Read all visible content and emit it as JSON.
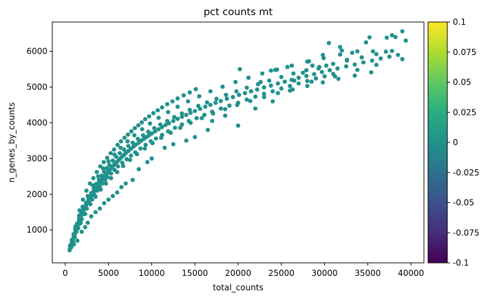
{
  "chart_data": {
    "type": "scatter",
    "title": "pct counts mt",
    "xlabel": "total_counts",
    "ylabel": "n_genes_by_counts",
    "xlim": [
      -1500,
      41500
    ],
    "ylim": [
      80,
      6820
    ],
    "xticks": [
      0,
      5000,
      10000,
      15000,
      20000,
      25000,
      30000,
      35000,
      40000
    ],
    "yticks": [
      1000,
      2000,
      3000,
      4000,
      5000,
      6000
    ],
    "grid": false,
    "legend": "none",
    "point_color": "#21918c",
    "colorbar": {
      "label": "",
      "colormap": "viridis",
      "range": [
        -0.1,
        0.1
      ],
      "ticks": [
        "0.1",
        "0.075",
        "0.05",
        "0.025",
        "0",
        "-0.025",
        "-0.05",
        "-0.075",
        "-0.1"
      ],
      "tick_values": [
        0.1,
        0.075,
        0.05,
        0.025,
        0,
        -0.025,
        -0.05,
        -0.075,
        -0.1
      ]
    },
    "points": [
      [
        500,
        430
      ],
      [
        550,
        470
      ],
      [
        600,
        520
      ],
      [
        650,
        560
      ],
      [
        700,
        600
      ],
      [
        760,
        640
      ],
      [
        820,
        690
      ],
      [
        880,
        730
      ],
      [
        950,
        780
      ],
      [
        1000,
        820
      ],
      [
        1050,
        860
      ],
      [
        1100,
        900
      ],
      [
        1150,
        930
      ],
      [
        1200,
        970
      ],
      [
        1250,
        1010
      ],
      [
        1300,
        1040
      ],
      [
        1350,
        1080
      ],
      [
        1400,
        1110
      ],
      [
        1450,
        1150
      ],
      [
        1500,
        1180
      ],
      [
        1550,
        1220
      ],
      [
        1600,
        1250
      ],
      [
        1650,
        1290
      ],
      [
        1700,
        1320
      ],
      [
        1750,
        1350
      ],
      [
        1800,
        1380
      ],
      [
        1850,
        1410
      ],
      [
        1900,
        1440
      ],
      [
        1950,
        1470
      ],
      [
        2000,
        1500
      ],
      [
        2100,
        1540
      ],
      [
        2200,
        1600
      ],
      [
        2300,
        1650
      ],
      [
        2400,
        1700
      ],
      [
        2500,
        1750
      ],
      [
        2600,
        1790
      ],
      [
        2700,
        1840
      ],
      [
        2800,
        1880
      ],
      [
        2900,
        1920
      ],
      [
        3000,
        1960
      ],
      [
        3100,
        2000
      ],
      [
        3200,
        2040
      ],
      [
        3300,
        2080
      ],
      [
        3400,
        2120
      ],
      [
        3500,
        2160
      ],
      [
        3600,
        2190
      ],
      [
        3700,
        2230
      ],
      [
        3800,
        2260
      ],
      [
        3900,
        2300
      ],
      [
        4000,
        2330
      ],
      [
        4100,
        2370
      ],
      [
        4200,
        2400
      ],
      [
        4300,
        2430
      ],
      [
        4400,
        2460
      ],
      [
        4500,
        2490
      ],
      [
        4600,
        2520
      ],
      [
        4700,
        2550
      ],
      [
        4800,
        2580
      ],
      [
        4900,
        2610
      ],
      [
        5000,
        2640
      ],
      [
        5200,
        2700
      ],
      [
        5400,
        2760
      ],
      [
        5600,
        2810
      ],
      [
        5800,
        2860
      ],
      [
        6000,
        2910
      ],
      [
        6200,
        2960
      ],
      [
        6400,
        3010
      ],
      [
        6600,
        3060
      ],
      [
        6800,
        3100
      ],
      [
        7000,
        3150
      ],
      [
        7300,
        3210
      ],
      [
        7600,
        3270
      ],
      [
        7900,
        3330
      ],
      [
        8200,
        3390
      ],
      [
        8500,
        3440
      ],
      [
        8800,
        3500
      ],
      [
        9100,
        3550
      ],
      [
        9400,
        3600
      ],
      [
        9700,
        3650
      ],
      [
        10000,
        3700
      ],
      [
        10400,
        3760
      ],
      [
        10800,
        3820
      ],
      [
        11200,
        3880
      ],
      [
        11600,
        3940
      ],
      [
        12000,
        3990
      ],
      [
        12500,
        4050
      ],
      [
        13000,
        4110
      ],
      [
        13500,
        4170
      ],
      [
        14000,
        4220
      ],
      [
        14500,
        4280
      ],
      [
        15000,
        4330
      ],
      [
        15600,
        4390
      ],
      [
        16200,
        4450
      ],
      [
        16800,
        4500
      ],
      [
        17400,
        4560
      ],
      [
        18000,
        4610
      ],
      [
        18700,
        4670
      ],
      [
        19400,
        4720
      ],
      [
        20100,
        4780
      ],
      [
        20800,
        4830
      ],
      [
        21500,
        4880
      ],
      [
        22200,
        4930
      ],
      [
        23000,
        4990
      ],
      [
        23800,
        5040
      ],
      [
        24600,
        5100
      ],
      [
        25400,
        5150
      ],
      [
        26200,
        5200
      ],
      [
        27000,
        5260
      ],
      [
        27900,
        5310
      ],
      [
        28800,
        5360
      ],
      [
        29700,
        5420
      ],
      [
        30600,
        5470
      ],
      [
        31500,
        5520
      ],
      [
        32500,
        5580
      ],
      [
        33500,
        5630
      ],
      [
        34500,
        5690
      ],
      [
        35500,
        5740
      ],
      [
        36500,
        5800
      ],
      [
        37500,
        5850
      ],
      [
        38500,
        5900
      ],
      [
        700,
        520
      ],
      [
        900,
        650
      ],
      [
        1100,
        800
      ],
      [
        1300,
        950
      ],
      [
        1500,
        1050
      ],
      [
        1700,
        1180
      ],
      [
        1900,
        1300
      ],
      [
        2200,
        1450
      ],
      [
        2500,
        1600
      ],
      [
        2800,
        1750
      ],
      [
        3100,
        1850
      ],
      [
        3400,
        1980
      ],
      [
        3700,
        2100
      ],
      [
        4000,
        2200
      ],
      [
        4300,
        2300
      ],
      [
        4600,
        2400
      ],
      [
        4900,
        2480
      ],
      [
        5300,
        2580
      ],
      [
        5700,
        2680
      ],
      [
        6100,
        2780
      ],
      [
        6600,
        2880
      ],
      [
        7100,
        2980
      ],
      [
        7600,
        3080
      ],
      [
        8100,
        3170
      ],
      [
        8700,
        3280
      ],
      [
        9300,
        3380
      ],
      [
        9900,
        3480
      ],
      [
        10500,
        3560
      ],
      [
        11200,
        3660
      ],
      [
        11900,
        3760
      ],
      [
        12700,
        3860
      ],
      [
        13500,
        3950
      ],
      [
        14300,
        4050
      ],
      [
        15200,
        4130
      ],
      [
        16100,
        4220
      ],
      [
        17000,
        4310
      ],
      [
        18000,
        4400
      ],
      [
        19000,
        4480
      ],
      [
        20000,
        4560
      ],
      [
        21000,
        4650
      ],
      [
        22000,
        4730
      ],
      [
        23000,
        4810
      ],
      [
        24000,
        4880
      ],
      [
        25000,
        4960
      ],
      [
        26000,
        5030
      ],
      [
        27000,
        5100
      ],
      [
        28000,
        5170
      ],
      [
        29000,
        5240
      ],
      [
        30000,
        5300
      ],
      [
        31000,
        5370
      ],
      [
        550,
        560
      ],
      [
        750,
        720
      ],
      [
        950,
        880
      ],
      [
        1150,
        1030
      ],
      [
        1350,
        1170
      ],
      [
        1600,
        1320
      ],
      [
        1850,
        1470
      ],
      [
        2100,
        1610
      ],
      [
        2400,
        1760
      ],
      [
        2700,
        1900
      ],
      [
        3000,
        2030
      ],
      [
        3300,
        2160
      ],
      [
        3600,
        2290
      ],
      [
        3900,
        2400
      ],
      [
        4200,
        2520
      ],
      [
        4500,
        2630
      ],
      [
        4800,
        2730
      ],
      [
        5100,
        2820
      ],
      [
        5500,
        2940
      ],
      [
        5900,
        3050
      ],
      [
        6300,
        3150
      ],
      [
        6800,
        3250
      ],
      [
        7300,
        3350
      ],
      [
        7800,
        3440
      ],
      [
        8400,
        3550
      ],
      [
        9000,
        3650
      ],
      [
        9600,
        3750
      ],
      [
        10300,
        3850
      ],
      [
        11000,
        3950
      ],
      [
        11800,
        4050
      ],
      [
        12600,
        4160
      ],
      [
        13500,
        4260
      ],
      [
        14400,
        4360
      ],
      [
        15400,
        4470
      ],
      [
        16400,
        4570
      ],
      [
        17500,
        4670
      ],
      [
        18600,
        4780
      ],
      [
        19800,
        4880
      ],
      [
        21000,
        4980
      ],
      [
        22300,
        5080
      ],
      [
        23600,
        5180
      ],
      [
        25000,
        5280
      ],
      [
        26400,
        5380
      ],
      [
        27900,
        5470
      ],
      [
        29400,
        5560
      ],
      [
        31000,
        5650
      ],
      [
        32600,
        5740
      ],
      [
        34300,
        5830
      ],
      [
        36000,
        5920
      ],
      [
        37800,
        6010
      ],
      [
        1800,
        1200
      ],
      [
        2300,
        1450
      ],
      [
        2900,
        1720
      ],
      [
        3500,
        1930
      ],
      [
        4100,
        2130
      ],
      [
        4700,
        2300
      ],
      [
        5300,
        2450
      ],
      [
        6000,
        2620
      ],
      [
        6700,
        2790
      ],
      [
        7500,
        2960
      ],
      [
        8300,
        3120
      ],
      [
        9200,
        3280
      ],
      [
        10100,
        3430
      ],
      [
        11100,
        3580
      ],
      [
        12200,
        3720
      ],
      [
        13300,
        3860
      ],
      [
        14500,
        4000
      ],
      [
        15800,
        4130
      ],
      [
        17100,
        4260
      ],
      [
        18500,
        4380
      ],
      [
        19900,
        4500
      ],
      [
        21400,
        4610
      ],
      [
        23000,
        4720
      ],
      [
        24600,
        4830
      ],
      [
        26300,
        4930
      ],
      [
        28000,
        5030
      ],
      [
        29800,
        5130
      ],
      [
        31600,
        5230
      ],
      [
        33500,
        5320
      ],
      [
        35400,
        5410
      ],
      [
        1200,
        1100
      ],
      [
        1600,
        1400
      ],
      [
        2000,
        1650
      ],
      [
        2600,
        1950
      ],
      [
        3200,
        2250
      ],
      [
        3800,
        2500
      ],
      [
        4400,
        2720
      ],
      [
        5000,
        2920
      ],
      [
        5700,
        3110
      ],
      [
        6400,
        3300
      ],
      [
        7200,
        3480
      ],
      [
        8000,
        3650
      ],
      [
        8900,
        3820
      ],
      [
        9800,
        3980
      ],
      [
        10800,
        4140
      ],
      [
        11900,
        4300
      ],
      [
        13000,
        4450
      ],
      [
        14200,
        4600
      ],
      [
        15500,
        4740
      ],
      [
        16800,
        4880
      ],
      [
        18200,
        5010
      ],
      [
        19700,
        5140
      ],
      [
        21200,
        5260
      ],
      [
        22800,
        5380
      ],
      [
        24500,
        5490
      ],
      [
        26200,
        5600
      ],
      [
        28000,
        5710
      ],
      [
        29900,
        5810
      ],
      [
        31800,
        5910
      ],
      [
        33800,
        6000
      ],
      [
        24000,
        4600
      ],
      [
        20000,
        3920
      ],
      [
        17000,
        4050
      ],
      [
        14000,
        3500
      ],
      [
        11500,
        3300
      ],
      [
        9500,
        2900
      ],
      [
        7800,
        2400
      ],
      [
        6500,
        2200
      ],
      [
        5500,
        1950
      ],
      [
        4500,
        1750
      ],
      [
        3500,
        1500
      ],
      [
        2600,
        1200
      ],
      [
        1900,
        950
      ],
      [
        1400,
        700
      ],
      [
        1000,
        600
      ],
      [
        2300,
        1080
      ],
      [
        3000,
        1380
      ],
      [
        4000,
        1600
      ],
      [
        5000,
        1850
      ],
      [
        6000,
        2050
      ],
      [
        7000,
        2300
      ],
      [
        8500,
        2700
      ],
      [
        10000,
        3000
      ],
      [
        12500,
        3400
      ],
      [
        15000,
        3600
      ],
      [
        16500,
        3800
      ],
      [
        18500,
        4200
      ],
      [
        22000,
        4400
      ],
      [
        26000,
        4900
      ],
      [
        28500,
        5150
      ],
      [
        30500,
        6230
      ],
      [
        31800,
        6120
      ],
      [
        35200,
        6390
      ],
      [
        35600,
        6000
      ],
      [
        37200,
        6380
      ],
      [
        37800,
        6450
      ],
      [
        38200,
        6400
      ],
      [
        39000,
        6560
      ],
      [
        39400,
        6300
      ],
      [
        39000,
        5780
      ],
      [
        36000,
        5620
      ],
      [
        33200,
        5960
      ],
      [
        32600,
        5760
      ],
      [
        33800,
        5480
      ],
      [
        31200,
        5300
      ],
      [
        28600,
        5600
      ],
      [
        29800,
        5900
      ],
      [
        32000,
        6020
      ],
      [
        34800,
        6250
      ],
      [
        37100,
        5990
      ],
      [
        27500,
        5400
      ],
      [
        25700,
        5560
      ],
      [
        23800,
        5460
      ],
      [
        20200,
        5500
      ],
      [
        22600,
        5140
      ],
      [
        26500,
        5180
      ],
      [
        29300,
        5520
      ],
      [
        30200,
        5600
      ],
      [
        24300,
        5480
      ],
      [
        28200,
        5720
      ],
      [
        1650,
        1550
      ],
      [
        2050,
        1850
      ],
      [
        2450,
        2100
      ],
      [
        2850,
        2300
      ],
      [
        3250,
        2450
      ],
      [
        3650,
        2620
      ],
      [
        4050,
        2780
      ],
      [
        4450,
        2900
      ],
      [
        4850,
        3020
      ],
      [
        5250,
        3150
      ],
      [
        5650,
        3250
      ],
      [
        6050,
        3380
      ],
      [
        6450,
        3480
      ],
      [
        6850,
        3580
      ],
      [
        7250,
        3670
      ],
      [
        7650,
        3760
      ],
      [
        8050,
        3850
      ],
      [
        8450,
        3930
      ],
      [
        8850,
        4010
      ],
      [
        9250,
        4100
      ],
      [
        9700,
        4180
      ],
      [
        10200,
        4270
      ],
      [
        10700,
        4350
      ],
      [
        11200,
        4430
      ],
      [
        11800,
        4520
      ],
      [
        12400,
        4600
      ],
      [
        13000,
        4680
      ],
      [
        13700,
        4770
      ],
      [
        14400,
        4850
      ],
      [
        15100,
        4940
      ]
    ]
  }
}
